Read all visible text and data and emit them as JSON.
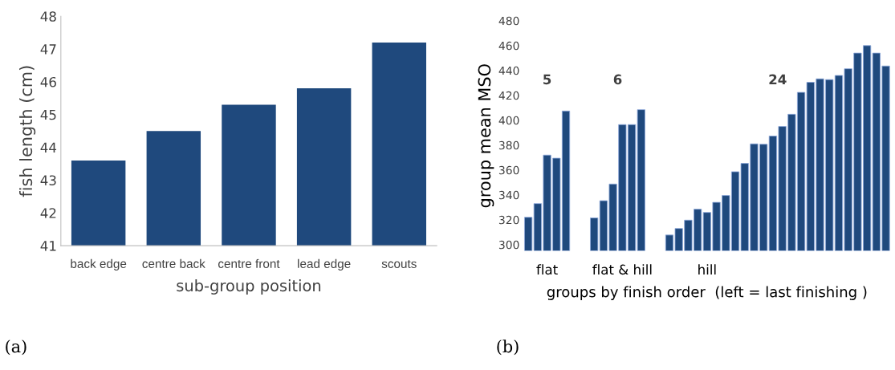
{
  "chart_data": [
    {
      "type": "bar",
      "categories": [
        "back edge",
        "centre back",
        "centre front",
        "lead edge",
        "scouts"
      ],
      "values": [
        43.6,
        44.5,
        45.3,
        45.8,
        47.2
      ],
      "color": "#1f497d",
      "ylim": [
        41,
        48
      ],
      "yticks": [
        41,
        42,
        43,
        44,
        45,
        46,
        47,
        48
      ],
      "xlabel": "sub-group position",
      "ylabel": "fish length (cm)",
      "grid": false,
      "legend": false,
      "annotations": [
        "(a)"
      ]
    },
    {
      "type": "bar",
      "categories": [
        null,
        null,
        "flat",
        null,
        null,
        null,
        null,
        null,
        null,
        null,
        "flat & hill",
        null,
        null,
        null,
        null,
        null,
        null,
        null,
        null,
        "hill",
        null,
        null,
        null,
        null,
        null,
        null,
        null,
        null,
        null,
        null,
        null,
        null,
        null,
        null,
        null,
        null,
        null,
        null,
        null
      ],
      "values": [
        322,
        333,
        372,
        369.5,
        407.4,
        null,
        null,
        321.5,
        335.3,
        348.7,
        396.5,
        396.5,
        408.5,
        null,
        null,
        307.7,
        313,
        319.7,
        328.5,
        325.9,
        334,
        339.5,
        358.6,
        365.3,
        381,
        380.7,
        387.3,
        395,
        404.8,
        422.4,
        430.5,
        433.3,
        432.7,
        436,
        441.4,
        454,
        460,
        454,
        443.6
      ],
      "color": "#1f497d",
      "ylim": [
        295,
        480
      ],
      "yticks": [
        300,
        320,
        340,
        360,
        380,
        400,
        420,
        440,
        460,
        480
      ],
      "xlabel": "groups by finish order  (left = last finishing )",
      "ylabel": "group mean MSO",
      "grid": false,
      "legend": false,
      "annotations": [
        "5",
        "6",
        "24",
        "(b)"
      ]
    }
  ]
}
